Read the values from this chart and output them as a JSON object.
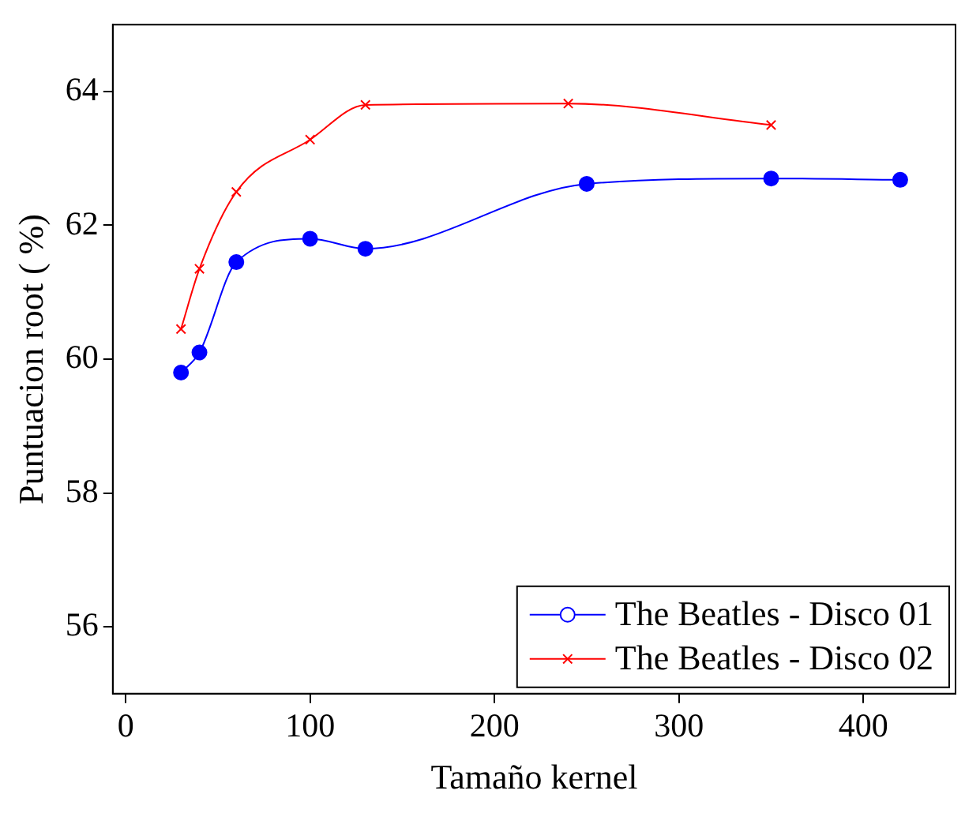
{
  "chart_data": {
    "type": "line",
    "xlabel": "Tamaño kernel",
    "ylabel": "Puntuacion root ( %)",
    "xlim": [
      -7,
      450
    ],
    "xticks": [
      0,
      100,
      200,
      300,
      400
    ],
    "ylim": [
      55,
      65
    ],
    "yticks": [
      56,
      58,
      60,
      62,
      64
    ],
    "grid": false,
    "legend": "bottom right",
    "series": [
      {
        "name": "The Beatles - Disco 01",
        "color": "#0000ff",
        "marker": "circle",
        "x": [
          30,
          40,
          60,
          100,
          130,
          250,
          350,
          420
        ],
        "values": [
          59.8,
          60.1,
          61.45,
          61.8,
          61.65,
          62.62,
          62.7,
          62.68
        ]
      },
      {
        "name": "The Beatles - Disco 02",
        "color": "#ff0000",
        "marker": "cross",
        "x": [
          30,
          40,
          60,
          100,
          130,
          240,
          350
        ],
        "values": [
          60.45,
          61.35,
          62.5,
          63.28,
          63.8,
          63.82,
          63.5
        ]
      }
    ]
  }
}
